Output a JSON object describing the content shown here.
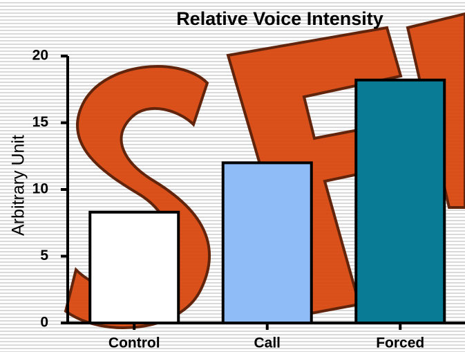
{
  "chart_data": {
    "type": "bar",
    "title": "Relative Voice Intensity",
    "y_label": "Arbitrary Unit",
    "categories": [
      "Control",
      "Call",
      "Forced"
    ],
    "values": [
      8.3,
      12.0,
      18.2
    ],
    "colors": [
      "#ffffff",
      "#8fbcf6",
      "#0a7b94"
    ],
    "ylim": [
      0,
      20
    ],
    "yticks": [
      0,
      5,
      10,
      15,
      20
    ]
  }
}
